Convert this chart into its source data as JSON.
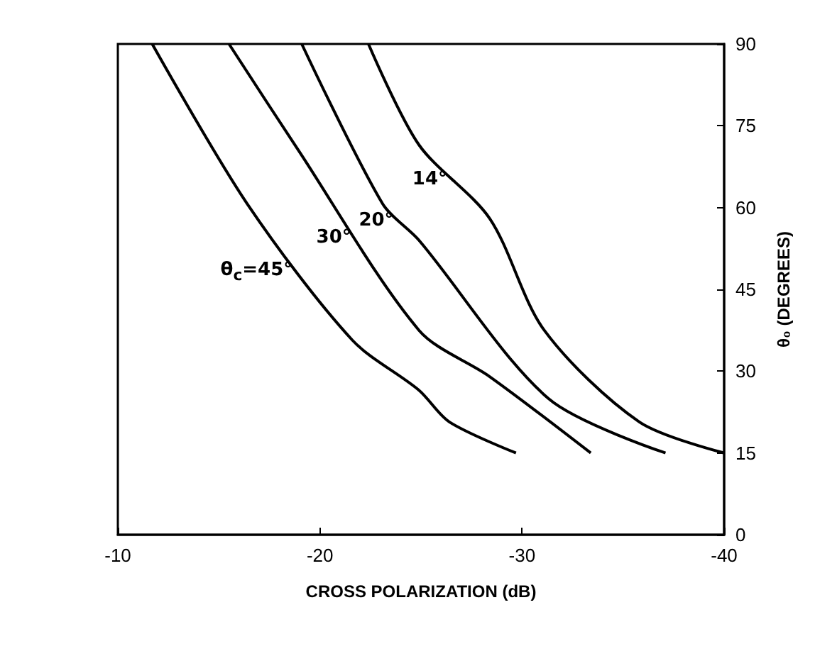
{
  "chart_data": {
    "type": "line",
    "xlabel": "CROSS POLARIZATION (dB)",
    "ylabel": "θ₀ (DEGREES)",
    "xlim": [
      -10,
      -40
    ],
    "xticks": [
      -10,
      -20,
      -30,
      -40
    ],
    "ylim": [
      0,
      90
    ],
    "yticks": [
      0,
      15,
      30,
      45,
      60,
      75,
      90
    ],
    "grid": false,
    "legend": false,
    "marker": "none",
    "line_style": "solid",
    "series": [
      {
        "name": "θ$_{c}$=45°",
        "color": "#000000",
        "x": [
          -11.7,
          -16.4,
          -21.6,
          -24.9,
          -26.4,
          -29.7
        ],
        "values": [
          90,
          60.7,
          35.7,
          26.5,
          20.7,
          15
        ]
      },
      {
        "name": "30°",
        "color": "#000000",
        "x": [
          -15.5,
          -18.9,
          -24.9,
          -28.4,
          -33.4
        ],
        "values": [
          90,
          70.7,
          37.5,
          29,
          15
        ]
      },
      {
        "name": "20°",
        "color": "#000000",
        "x": [
          -19.1,
          -23.1,
          -24.9,
          -31.3,
          -37.1
        ],
        "values": [
          90,
          60.7,
          54,
          25,
          15
        ]
      },
      {
        "name": "14°",
        "color": "#000000",
        "x": [
          -22.4,
          -24.9,
          -28.4,
          -31.1,
          -35.8,
          -40
        ],
        "values": [
          90,
          71.5,
          58,
          37.5,
          20.7,
          15
        ]
      }
    ]
  }
}
